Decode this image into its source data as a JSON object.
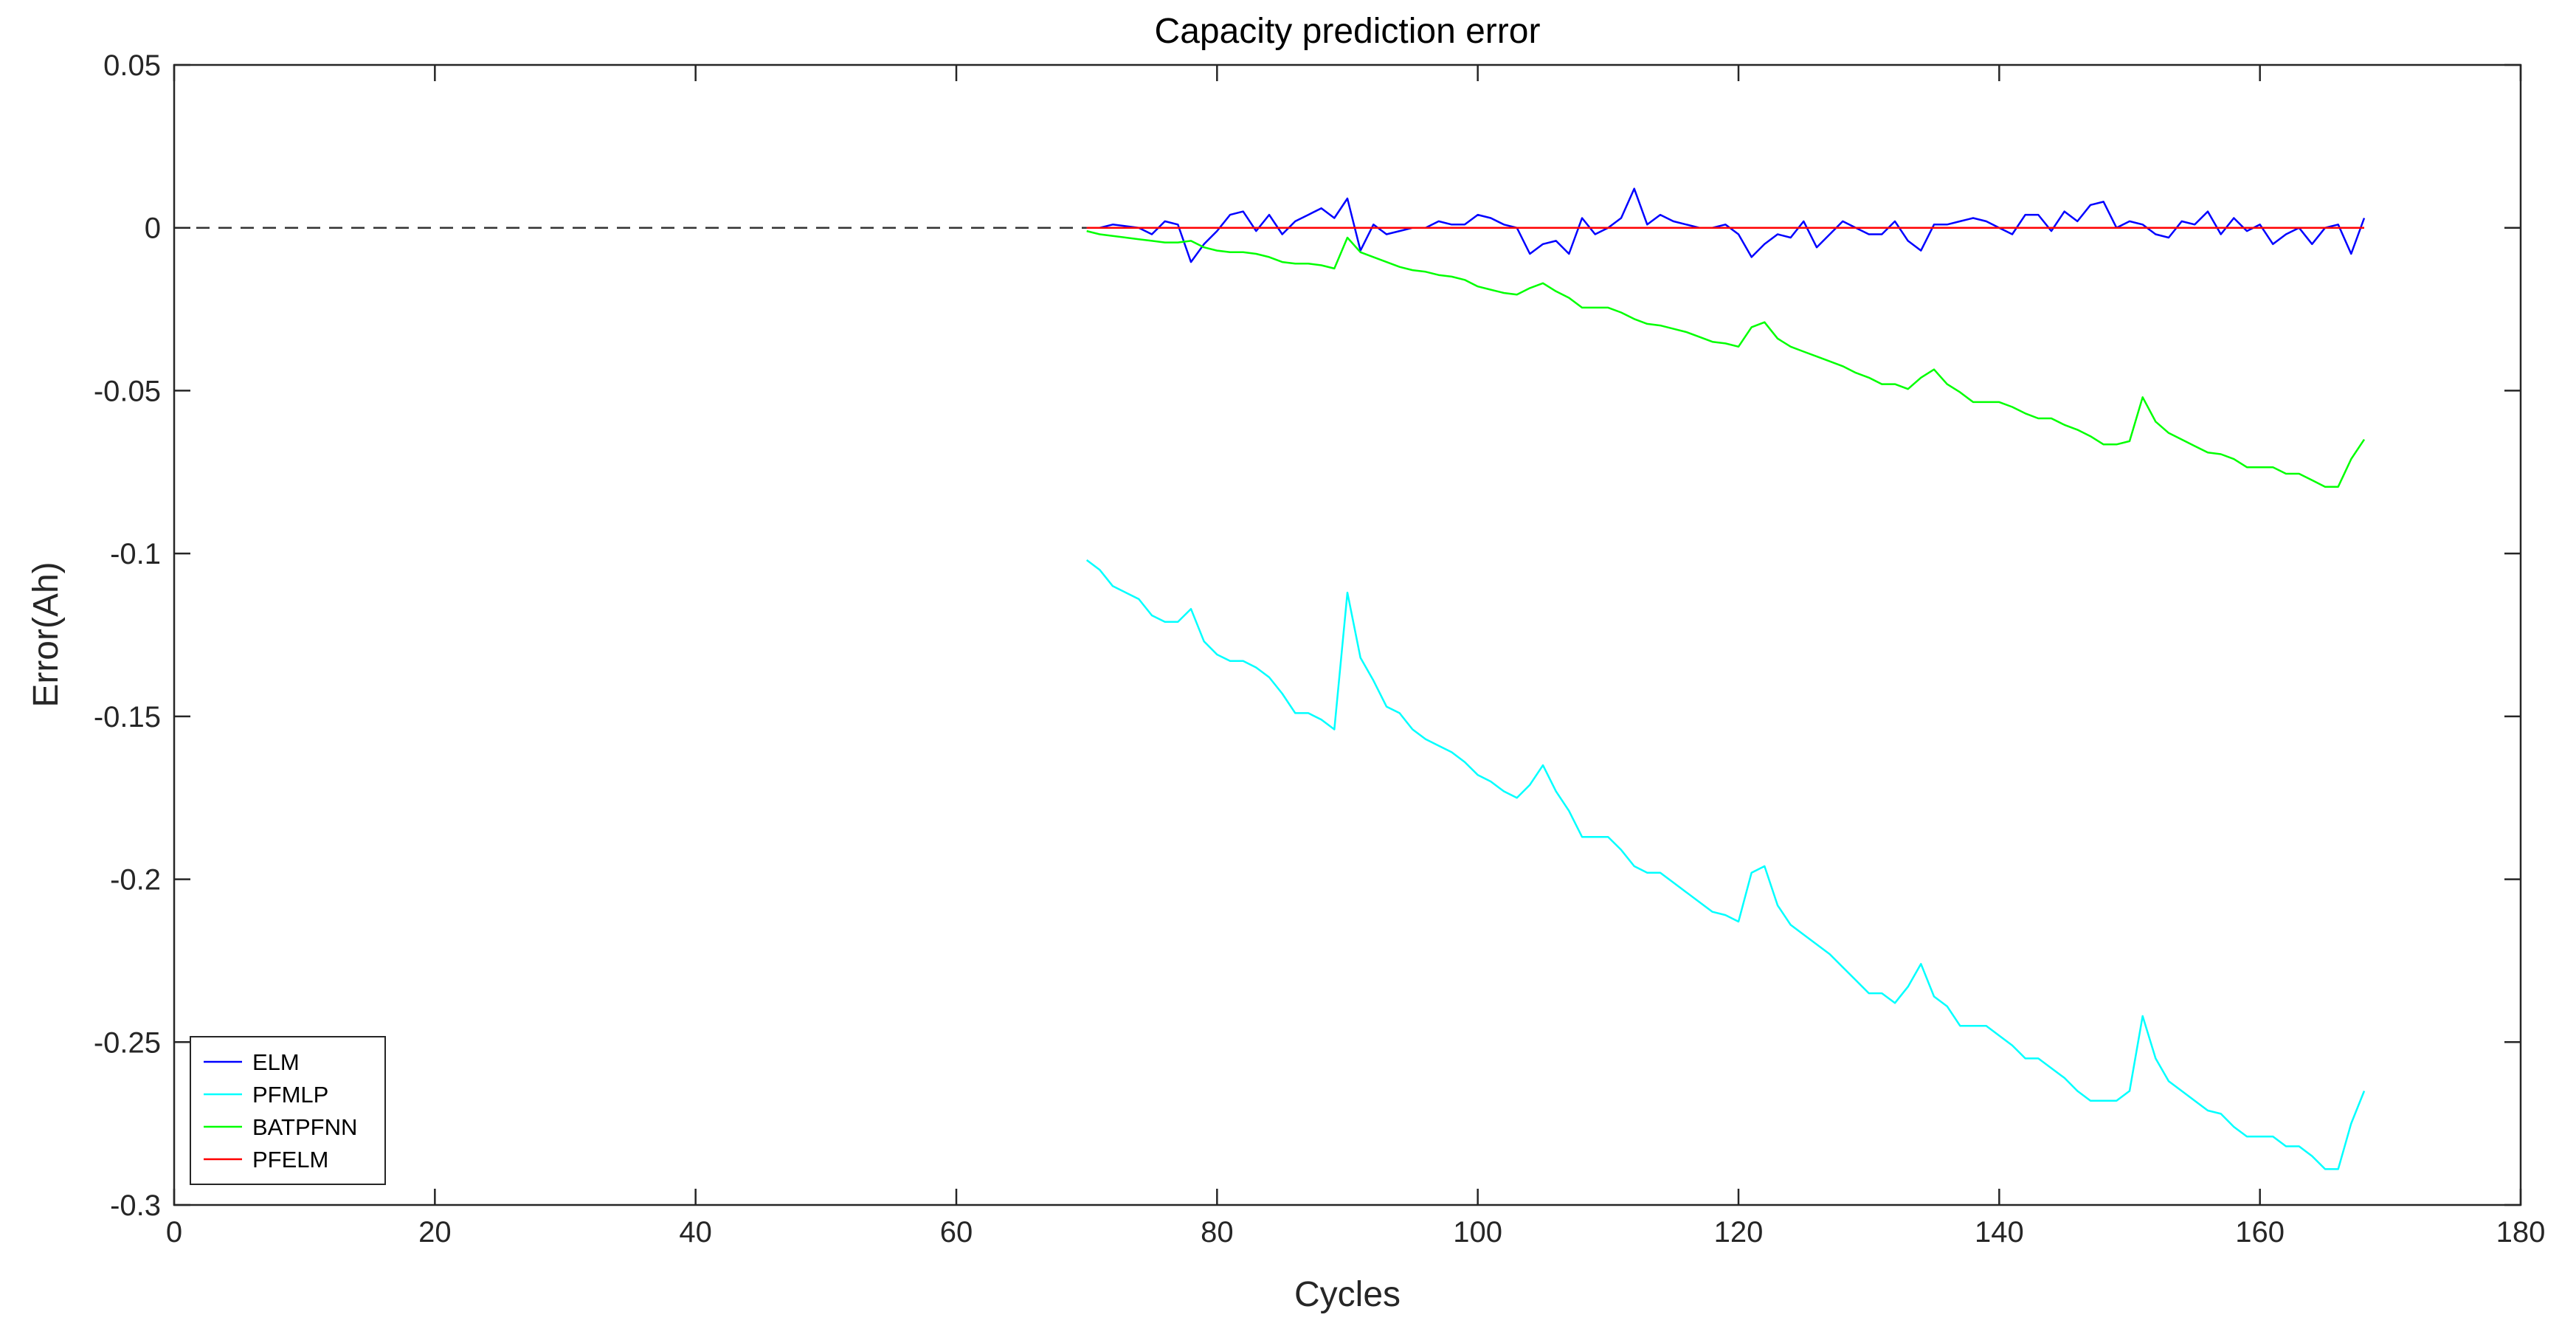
{
  "chart_data": {
    "type": "line",
    "title": "Capacity prediction error",
    "xlabel": "Cycles",
    "ylabel": "Error(Ah)",
    "xlim": [
      0,
      180
    ],
    "ylim": [
      -0.3,
      0.05
    ],
    "xticks": [
      0,
      20,
      40,
      60,
      80,
      100,
      120,
      140,
      160,
      180
    ],
    "yticks": [
      0.05,
      0,
      -0.05,
      -0.1,
      -0.15,
      -0.2,
      -0.25,
      -0.3
    ],
    "xtick_labels": [
      "0",
      "20",
      "40",
      "60",
      "80",
      "100",
      "120",
      "140",
      "160",
      "180"
    ],
    "ytick_labels": [
      "0.05",
      "0",
      "-0.05",
      "-0.1",
      "-0.15",
      "-0.2",
      "-0.25",
      "-0.3"
    ],
    "grid": false,
    "legend_position": "bottom-left",
    "reference_line": {
      "y": 0,
      "x": [
        0,
        70
      ],
      "style": "dashed",
      "color": "#333333"
    },
    "series": [
      {
        "name": "ELM",
        "color": "#0000ff",
        "x": [
          70,
          71,
          72,
          73,
          74,
          75,
          76,
          77,
          78,
          79,
          80,
          81,
          82,
          83,
          84,
          85,
          86,
          87,
          88,
          89,
          90,
          91,
          92,
          93,
          94,
          95,
          96,
          97,
          98,
          99,
          100,
          101,
          102,
          103,
          104,
          105,
          106,
          107,
          108,
          109,
          110,
          111,
          112,
          113,
          114,
          115,
          116,
          117,
          118,
          119,
          120,
          121,
          122,
          123,
          124,
          125,
          126,
          127,
          128,
          129,
          130,
          131,
          132,
          133,
          134,
          135,
          136,
          137,
          138,
          139,
          140,
          141,
          142,
          143,
          144,
          145,
          146,
          147,
          148,
          149,
          150,
          151,
          152,
          153,
          154,
          155,
          156,
          157,
          158,
          159,
          160,
          161,
          162,
          163,
          164,
          165,
          166,
          167,
          168
        ],
        "y": [
          0,
          0,
          0.001,
          0.0005,
          0,
          -0.002,
          0.002,
          0.001,
          -0.0105,
          -0.005,
          -0.001,
          0.004,
          0.005,
          -0.001,
          0.004,
          -0.002,
          0.002,
          0.004,
          0.006,
          0.003,
          0.009,
          -0.007,
          0.001,
          -0.002,
          -0.001,
          0,
          0,
          0.002,
          0.001,
          0.001,
          0.004,
          0.003,
          0.001,
          0,
          -0.008,
          -0.005,
          -0.004,
          -0.008,
          0.003,
          -0.002,
          0,
          0.003,
          0.012,
          0.001,
          0.004,
          0.002,
          0.001,
          0,
          0,
          0.001,
          -0.002,
          -0.009,
          -0.005,
          -0.002,
          -0.003,
          0.002,
          -0.006,
          -0.002,
          0.002,
          0,
          -0.002,
          -0.002,
          0.002,
          -0.004,
          -0.007,
          0.001,
          0.001,
          0.002,
          0.003,
          0.002,
          0,
          -0.002,
          0.004,
          0.004,
          -0.001,
          0.005,
          0.002,
          0.007,
          0.008,
          0,
          0.002,
          0.001,
          -0.002,
          -0.003,
          0.002,
          0.001,
          0.005,
          -0.002,
          0.003,
          -0.001,
          0.001,
          -0.005,
          -0.002,
          0,
          -0.005,
          0,
          0.001,
          -0.008,
          0.003
        ]
      },
      {
        "name": "PFMLP",
        "color": "#00ffff",
        "x": [
          70,
          71,
          72,
          73,
          74,
          75,
          76,
          77,
          78,
          79,
          80,
          81,
          82,
          83,
          84,
          85,
          86,
          87,
          88,
          89,
          90,
          91,
          92,
          93,
          94,
          95,
          96,
          97,
          98,
          99,
          100,
          101,
          102,
          103,
          104,
          105,
          106,
          107,
          108,
          109,
          110,
          111,
          112,
          113,
          114,
          115,
          116,
          117,
          118,
          119,
          120,
          121,
          122,
          123,
          124,
          125,
          126,
          127,
          128,
          129,
          130,
          131,
          132,
          133,
          134,
          135,
          136,
          137,
          138,
          139,
          140,
          141,
          142,
          143,
          144,
          145,
          146,
          147,
          148,
          149,
          150,
          151,
          152,
          153,
          154,
          155,
          156,
          157,
          158,
          159,
          160,
          161,
          162,
          163,
          164,
          165,
          166,
          167,
          168
        ],
        "y": [
          -0.102,
          -0.105,
          -0.11,
          -0.112,
          -0.114,
          -0.119,
          -0.121,
          -0.121,
          -0.117,
          -0.127,
          -0.131,
          -0.133,
          -0.133,
          -0.135,
          -0.138,
          -0.143,
          -0.149,
          -0.149,
          -0.151,
          -0.154,
          -0.112,
          -0.132,
          -0.139,
          -0.147,
          -0.149,
          -0.154,
          -0.157,
          -0.159,
          -0.161,
          -0.164,
          -0.168,
          -0.17,
          -0.173,
          -0.175,
          -0.171,
          -0.165,
          -0.173,
          -0.179,
          -0.187,
          -0.187,
          -0.187,
          -0.191,
          -0.196,
          -0.198,
          -0.198,
          -0.201,
          -0.204,
          -0.207,
          -0.21,
          -0.211,
          -0.213,
          -0.198,
          -0.196,
          -0.208,
          -0.214,
          -0.217,
          -0.22,
          -0.223,
          -0.227,
          -0.231,
          -0.235,
          -0.235,
          -0.238,
          -0.233,
          -0.226,
          -0.236,
          -0.239,
          -0.245,
          -0.245,
          -0.245,
          -0.248,
          -0.251,
          -0.255,
          -0.255,
          -0.258,
          -0.261,
          -0.265,
          -0.268,
          -0.268,
          -0.268,
          -0.265,
          -0.242,
          -0.255,
          -0.262,
          -0.265,
          -0.268,
          -0.271,
          -0.272,
          -0.276,
          -0.279,
          -0.279,
          -0.279,
          -0.282,
          -0.282,
          -0.285,
          -0.289,
          -0.289,
          -0.275,
          -0.265
        ]
      },
      {
        "name": "BATPFNN",
        "color": "#00ff00",
        "x": [
          70,
          71,
          72,
          73,
          74,
          75,
          76,
          77,
          78,
          79,
          80,
          81,
          82,
          83,
          84,
          85,
          86,
          87,
          88,
          89,
          90,
          91,
          92,
          93,
          94,
          95,
          96,
          97,
          98,
          99,
          100,
          101,
          102,
          103,
          104,
          105,
          106,
          107,
          108,
          109,
          110,
          111,
          112,
          113,
          114,
          115,
          116,
          117,
          118,
          119,
          120,
          121,
          122,
          123,
          124,
          125,
          126,
          127,
          128,
          129,
          130,
          131,
          132,
          133,
          134,
          135,
          136,
          137,
          138,
          139,
          140,
          141,
          142,
          143,
          144,
          145,
          146,
          147,
          148,
          149,
          150,
          151,
          152,
          153,
          154,
          155,
          156,
          157,
          158,
          159,
          160,
          161,
          162,
          163,
          164,
          165,
          166,
          167,
          168
        ],
        "y": [
          -0.001,
          -0.002,
          -0.0025,
          -0.003,
          -0.0035,
          -0.004,
          -0.0045,
          -0.0045,
          -0.004,
          -0.006,
          -0.007,
          -0.0075,
          -0.0075,
          -0.008,
          -0.009,
          -0.0105,
          -0.011,
          -0.011,
          -0.0115,
          -0.0125,
          -0.003,
          -0.0075,
          -0.009,
          -0.0105,
          -0.012,
          -0.013,
          -0.0135,
          -0.0145,
          -0.015,
          -0.016,
          -0.018,
          -0.019,
          -0.02,
          -0.0205,
          -0.0185,
          -0.017,
          -0.0195,
          -0.0215,
          -0.0245,
          -0.0245,
          -0.0245,
          -0.026,
          -0.028,
          -0.0295,
          -0.03,
          -0.031,
          -0.032,
          -0.0335,
          -0.035,
          -0.0355,
          -0.0365,
          -0.0305,
          -0.029,
          -0.034,
          -0.0365,
          -0.038,
          -0.0395,
          -0.041,
          -0.0425,
          -0.0445,
          -0.046,
          -0.048,
          -0.048,
          -0.0495,
          -0.046,
          -0.0435,
          -0.048,
          -0.0505,
          -0.0535,
          -0.0535,
          -0.0535,
          -0.055,
          -0.057,
          -0.0585,
          -0.0585,
          -0.0605,
          -0.062,
          -0.064,
          -0.0665,
          -0.0665,
          -0.0655,
          -0.052,
          -0.0595,
          -0.063,
          -0.065,
          -0.067,
          -0.069,
          -0.0695,
          -0.071,
          -0.0735,
          -0.0735,
          -0.0735,
          -0.0755,
          -0.0755,
          -0.0775,
          -0.0795,
          -0.0795,
          -0.071,
          -0.065
        ]
      },
      {
        "name": "PFELM",
        "color": "#ff0000",
        "x": [
          70,
          168
        ],
        "y": [
          0,
          0
        ]
      }
    ]
  }
}
